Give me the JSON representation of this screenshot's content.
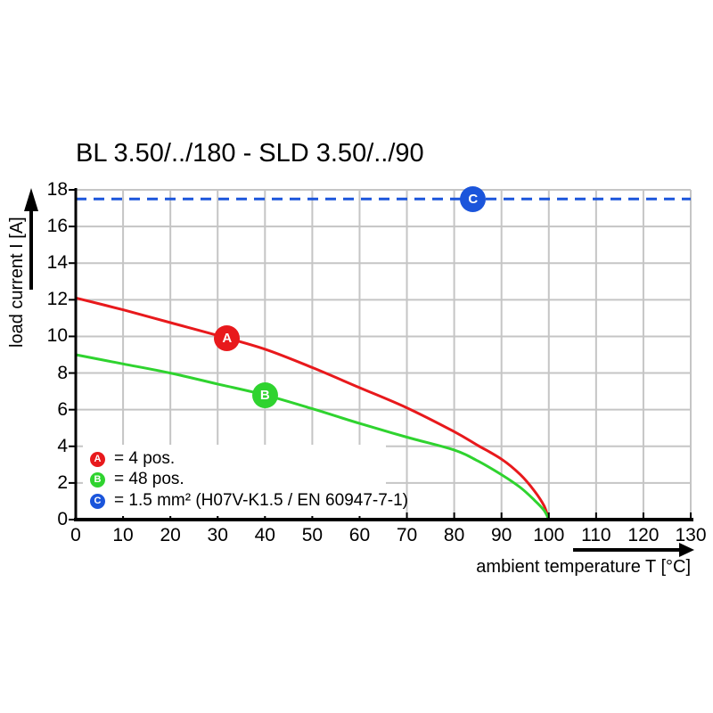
{
  "title": "BL 3.50/../180 - SLD 3.50/../90",
  "y_axis": {
    "label": "load current I [A]"
  },
  "x_axis": {
    "label": "ambient temperature T [°C]"
  },
  "legend": {
    "items": [
      {
        "letter": "A",
        "color": "#e8191c",
        "text": "= 4 pos."
      },
      {
        "letter": "B",
        "color": "#2fd32f",
        "text": "= 48 pos."
      },
      {
        "letter": "C",
        "color": "#1b55db",
        "text": "= 1.5 mm² (H07V-K1.5 / EN 60947-7-1)"
      }
    ]
  },
  "chart_data": {
    "type": "line",
    "title": "BL 3.50/../180 - SLD 3.50/../90",
    "xlabel": "ambient temperature T [°C]",
    "ylabel": "load current I [A]",
    "xlim": [
      0,
      130
    ],
    "ylim": [
      0,
      18
    ],
    "x_ticks": [
      0,
      10,
      20,
      30,
      40,
      50,
      60,
      70,
      80,
      90,
      100,
      110,
      120,
      130
    ],
    "y_ticks": [
      0,
      2,
      4,
      6,
      8,
      10,
      12,
      14,
      16,
      18
    ],
    "grid": true,
    "grid_color": "#c5c5c5",
    "legend_position": "lower-left",
    "series": [
      {
        "name": "A",
        "label": "4 pos.",
        "color": "#e8191c",
        "style": "solid",
        "points": [
          [
            0,
            12.1
          ],
          [
            10,
            11.45
          ],
          [
            20,
            10.75
          ],
          [
            30,
            10.05
          ],
          [
            40,
            9.3
          ],
          [
            50,
            8.3
          ],
          [
            60,
            7.2
          ],
          [
            70,
            6.1
          ],
          [
            80,
            4.8
          ],
          [
            85,
            4.05
          ],
          [
            90,
            3.3
          ],
          [
            94,
            2.45
          ],
          [
            97,
            1.55
          ],
          [
            99,
            0.75
          ],
          [
            100,
            0
          ]
        ],
        "marker": {
          "letter": "A",
          "x": 32,
          "y": 9.9
        }
      },
      {
        "name": "B",
        "label": "48 pos.",
        "color": "#2fd32f",
        "style": "solid",
        "points": [
          [
            0,
            9.0
          ],
          [
            10,
            8.5
          ],
          [
            20,
            8.0
          ],
          [
            30,
            7.4
          ],
          [
            40,
            6.8
          ],
          [
            50,
            6.05
          ],
          [
            60,
            5.25
          ],
          [
            70,
            4.5
          ],
          [
            80,
            3.8
          ],
          [
            85,
            3.2
          ],
          [
            90,
            2.45
          ],
          [
            94,
            1.75
          ],
          [
            97,
            1.05
          ],
          [
            99,
            0.5
          ],
          [
            100,
            0
          ]
        ],
        "marker": {
          "letter": "B",
          "x": 40,
          "y": 6.8
        }
      },
      {
        "name": "C",
        "label": "1.5 mm² (H07V-K1.5 / EN 60947-7-1)",
        "color": "#1b55db",
        "style": "dashed",
        "points": [
          [
            0,
            17.5
          ],
          [
            130,
            17.5
          ]
        ],
        "marker": {
          "letter": "C",
          "x": 84,
          "y": 17.5
        }
      }
    ]
  }
}
